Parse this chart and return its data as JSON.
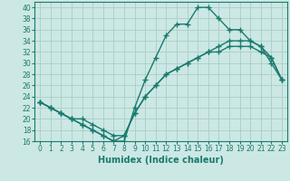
{
  "xlabel": "Humidex (Indice chaleur)",
  "bg_color": "#cce8e4",
  "line_color": "#1a7a6e",
  "grid_color": "#aaccc8",
  "ylim": [
    16,
    41
  ],
  "xlim": [
    -0.5,
    23.5
  ],
  "yticks": [
    16,
    18,
    20,
    22,
    24,
    26,
    28,
    30,
    32,
    34,
    36,
    38,
    40
  ],
  "xticks": [
    0,
    1,
    2,
    3,
    4,
    5,
    6,
    7,
    8,
    9,
    10,
    11,
    12,
    13,
    14,
    15,
    16,
    17,
    18,
    19,
    20,
    21,
    22,
    23
  ],
  "line1_x": [
    0,
    1,
    2,
    3,
    4,
    5,
    6,
    7,
    8,
    9,
    10,
    11,
    12,
    13,
    14,
    15,
    16,
    17,
    18,
    19,
    20,
    21,
    22,
    23
  ],
  "line1_y": [
    23,
    22,
    21,
    20,
    19,
    18,
    17,
    16,
    16,
    22,
    27,
    31,
    35,
    37,
    37,
    40,
    40,
    38,
    36,
    36,
    34,
    33,
    30,
    27
  ],
  "line2_x": [
    0,
    1,
    2,
    3,
    4,
    5,
    6,
    7,
    8,
    9,
    10,
    11,
    12,
    13,
    14,
    15,
    16,
    17,
    18,
    19,
    20,
    21,
    22,
    23
  ],
  "line2_y": [
    23,
    22,
    21,
    20,
    20,
    19,
    18,
    17,
    17,
    21,
    24,
    26,
    28,
    29,
    30,
    31,
    32,
    33,
    34,
    34,
    34,
    33,
    31,
    27
  ],
  "line3_x": [
    0,
    1,
    2,
    3,
    4,
    5,
    6,
    7,
    8,
    9,
    10,
    11,
    12,
    13,
    14,
    15,
    16,
    17,
    18,
    19,
    20,
    21,
    22,
    23
  ],
  "line3_y": [
    23,
    22,
    21,
    20,
    19,
    18,
    17,
    16,
    17,
    21,
    24,
    26,
    28,
    29,
    30,
    31,
    32,
    32,
    33,
    33,
    33,
    32,
    31,
    27
  ],
  "markersize": 2.5,
  "linewidth": 1.0,
  "font_size_label": 7,
  "font_size_tick": 5.5
}
